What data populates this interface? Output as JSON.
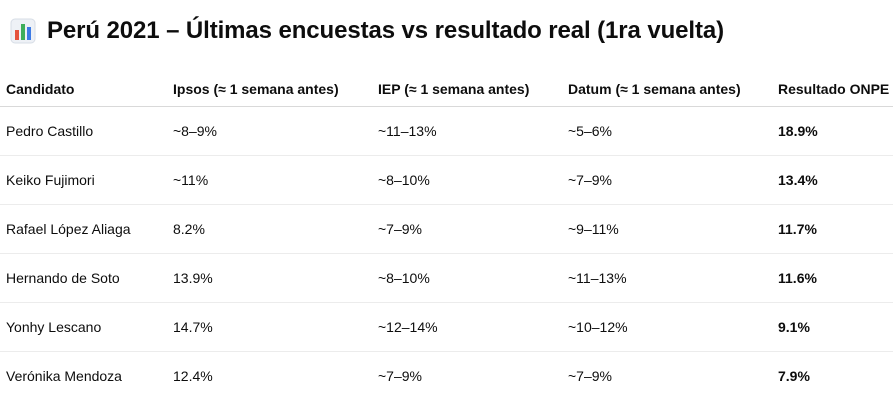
{
  "header": {
    "icon": "bar-chart-icon",
    "title": "Perú 2021 – Últimas encuestas vs resultado real (1ra vuelta)"
  },
  "table": {
    "columns": [
      "Candidato",
      "Ipsos (≈ 1 semana antes)",
      "IEP (≈ 1 semana antes)",
      "Datum (≈ 1 semana antes)",
      "Resultado ONPE"
    ],
    "rows": [
      {
        "candidate": "Pedro Castillo",
        "ipsos": "~8–9%",
        "iep": "~11–13%",
        "datum": "~5–6%",
        "onpe": "18.9%"
      },
      {
        "candidate": "Keiko Fujimori",
        "ipsos": "~11%",
        "iep": "~8–10%",
        "datum": "~7–9%",
        "onpe": "13.4%"
      },
      {
        "candidate": "Rafael López Aliaga",
        "ipsos": "8.2%",
        "iep": "~7–9%",
        "datum": "~9–11%",
        "onpe": "11.7%"
      },
      {
        "candidate": "Hernando de Soto",
        "ipsos": "13.9%",
        "iep": "~8–10%",
        "datum": "~11–13%",
        "onpe": "11.6%"
      },
      {
        "candidate": "Yonhy Lescano",
        "ipsos": "14.7%",
        "iep": "~12–14%",
        "datum": "~10–12%",
        "onpe": "9.1%"
      },
      {
        "candidate": "Verónika Mendoza",
        "ipsos": "12.4%",
        "iep": "~7–9%",
        "datum": "~7–9%",
        "onpe": "7.9%"
      }
    ]
  },
  "colors": {
    "text": "#0d0d0d",
    "header_rule": "#d9d9d9",
    "row_rule": "#ececec",
    "icon_bar_red": "#e5533d",
    "icon_bar_green": "#3fae5b",
    "icon_bar_blue": "#3d7be5",
    "icon_frame": "#d7dde6"
  }
}
